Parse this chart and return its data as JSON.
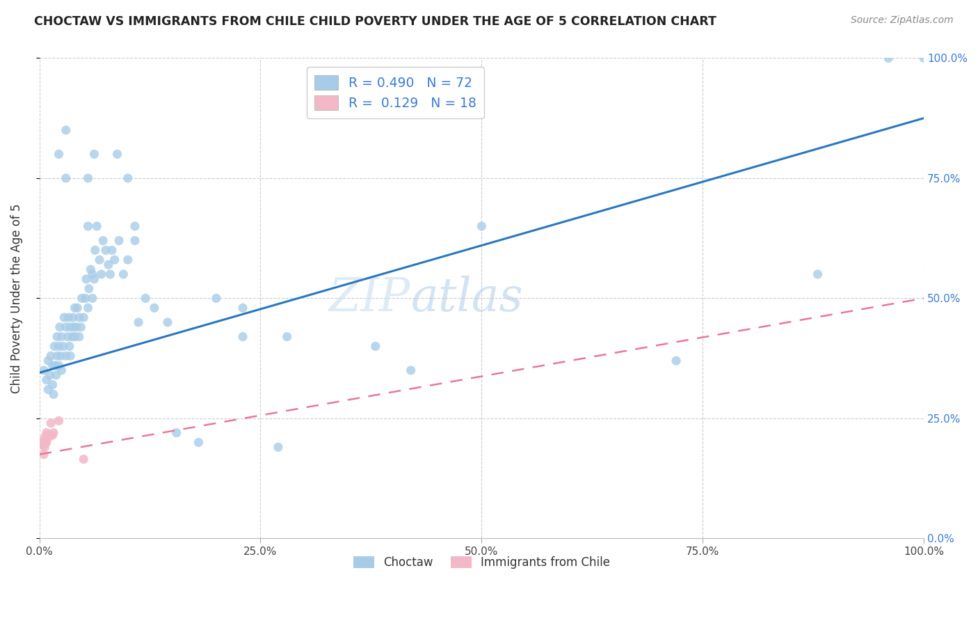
{
  "title": "CHOCTAW VS IMMIGRANTS FROM CHILE CHILD POVERTY UNDER THE AGE OF 5 CORRELATION CHART",
  "source": "Source: ZipAtlas.com",
  "ylabel": "Child Poverty Under the Age of 5",
  "watermark_zip": "ZIP",
  "watermark_atlas": "atlas",
  "legend_r1": "R = 0.490",
  "legend_n1": "N = 72",
  "legend_r2": "R =  0.129",
  "legend_n2": "N = 18",
  "legend_label1": "Choctaw",
  "legend_label2": "Immigrants from Chile",
  "scatter_blue_color": "#a8cce8",
  "scatter_pink_color": "#f2b8c8",
  "line_blue_color": "#2878c0",
  "line_pink_color": "#e87898",
  "background_color": "#ffffff",
  "grid_color": "#cccccc",
  "blue_line_x0": 0.0,
  "blue_line_y0": 0.345,
  "blue_line_x1": 1.0,
  "blue_line_y1": 0.875,
  "pink_line_x0": 0.0,
  "pink_line_y0": 0.175,
  "pink_line_x1": 1.0,
  "pink_line_y1": 0.5,
  "bx": [
    0.005,
    0.008,
    0.01,
    0.01,
    0.012,
    0.013,
    0.015,
    0.015,
    0.016,
    0.017,
    0.018,
    0.019,
    0.02,
    0.02,
    0.022,
    0.022,
    0.023,
    0.024,
    0.025,
    0.025,
    0.027,
    0.028,
    0.03,
    0.03,
    0.032,
    0.033,
    0.034,
    0.035,
    0.035,
    0.037,
    0.038,
    0.039,
    0.04,
    0.04,
    0.042,
    0.043,
    0.045,
    0.045,
    0.047,
    0.048,
    0.05,
    0.052,
    0.053,
    0.055,
    0.056,
    0.058,
    0.06,
    0.06,
    0.062,
    0.063,
    0.065,
    0.068,
    0.07,
    0.072,
    0.075,
    0.078,
    0.08,
    0.082,
    0.085,
    0.088,
    0.09,
    0.095,
    0.1,
    0.108,
    0.112,
    0.12,
    0.13,
    0.145,
    0.155,
    0.18,
    0.27,
    0.5
  ],
  "by": [
    0.35,
    0.33,
    0.31,
    0.37,
    0.34,
    0.38,
    0.32,
    0.36,
    0.3,
    0.4,
    0.36,
    0.34,
    0.38,
    0.42,
    0.36,
    0.4,
    0.44,
    0.38,
    0.35,
    0.42,
    0.4,
    0.46,
    0.38,
    0.44,
    0.42,
    0.46,
    0.4,
    0.38,
    0.44,
    0.42,
    0.46,
    0.44,
    0.42,
    0.48,
    0.44,
    0.48,
    0.42,
    0.46,
    0.44,
    0.5,
    0.46,
    0.5,
    0.54,
    0.48,
    0.52,
    0.56,
    0.5,
    0.55,
    0.54,
    0.6,
    0.65,
    0.58,
    0.55,
    0.62,
    0.6,
    0.57,
    0.55,
    0.6,
    0.58,
    0.8,
    0.62,
    0.55,
    0.58,
    0.62,
    0.45,
    0.5,
    0.48,
    0.45,
    0.22,
    0.2,
    0.19,
    0.65
  ],
  "px": [
    0.003,
    0.004,
    0.005,
    0.005,
    0.006,
    0.006,
    0.007,
    0.008,
    0.008,
    0.009,
    0.01,
    0.01,
    0.012,
    0.013,
    0.015,
    0.016,
    0.022,
    0.05
  ],
  "py": [
    0.195,
    0.2,
    0.195,
    0.175,
    0.19,
    0.21,
    0.2,
    0.2,
    0.22,
    0.215,
    0.21,
    0.215,
    0.215,
    0.24,
    0.215,
    0.22,
    0.245,
    0.165
  ],
  "extra_blue_x": [
    0.022,
    0.03,
    0.03,
    0.055,
    0.055,
    0.062,
    0.1,
    0.108,
    0.2,
    0.23,
    0.23,
    0.28,
    0.38,
    0.42,
    0.72,
    0.88,
    0.96,
    1.0
  ],
  "extra_blue_y": [
    0.8,
    0.75,
    0.85,
    0.75,
    0.65,
    0.8,
    0.75,
    0.65,
    0.5,
    0.48,
    0.42,
    0.42,
    0.4,
    0.35,
    0.37,
    0.55,
    1.0,
    1.0
  ],
  "xlim": [
    0.0,
    1.0
  ],
  "ylim": [
    0.0,
    1.0
  ],
  "xtick_vals": [
    0.0,
    0.25,
    0.5,
    0.75,
    1.0
  ],
  "xtick_labels": [
    "0.0%",
    "25.0%",
    "50.0%",
    "75.0%",
    "100.0%"
  ],
  "ytick_vals": [
    0.0,
    0.25,
    0.5,
    0.75,
    1.0
  ],
  "ytick_labels": [
    "0.0%",
    "25.0%",
    "50.0%",
    "75.0%",
    "100.0%"
  ]
}
